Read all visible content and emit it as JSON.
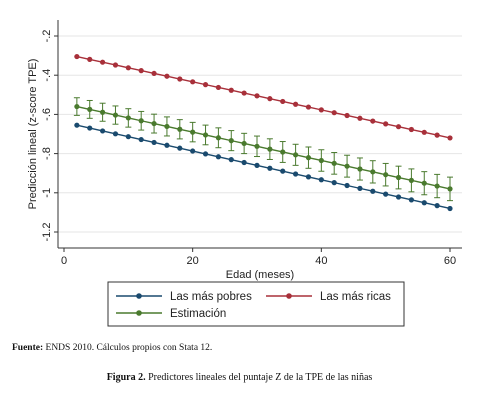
{
  "chart_data": {
    "type": "line",
    "title": "",
    "xlabel": "Edad (meses)",
    "ylabel": "Predicción lineal (z-score TPE)",
    "xlim": [
      0,
      60
    ],
    "ylim": [
      -1.2,
      -0.2
    ],
    "xticks": [
      "0",
      "20",
      "40",
      "60"
    ],
    "xtick_values": [
      0,
      20,
      40,
      60
    ],
    "yticks": [
      "-.2",
      "-.4",
      "-.6",
      "-.8",
      "-1",
      "-1.2"
    ],
    "ytick_values": [
      -0.2,
      -0.4,
      -0.6,
      -0.8,
      -1.0,
      -1.2
    ],
    "grid": true,
    "legend_placement": "bottom",
    "x": [
      2,
      4,
      6,
      8,
      10,
      12,
      14,
      16,
      18,
      20,
      22,
      24,
      26,
      28,
      30,
      32,
      34,
      36,
      38,
      40,
      42,
      44,
      46,
      48,
      50,
      52,
      54,
      56,
      58,
      60
    ],
    "series": [
      {
        "name": "Las más pobres",
        "color": "#1a4a6e",
        "y_start": -0.655,
        "y_end": -1.08,
        "error_bars": false
      },
      {
        "name": "Las más ricas",
        "color": "#a8303a",
        "y_start": -0.305,
        "y_end": -0.72,
        "error_bars": false
      },
      {
        "name": "Estimación",
        "color": "#4a7a2e",
        "y_start": -0.56,
        "y_end": -0.98,
        "error_bars": true,
        "ci_start": 0.045,
        "ci_end": 0.06
      }
    ]
  },
  "source": {
    "label": "Fuente:",
    "text": " ENDS 2010. Cálculos propios con Stata 12."
  },
  "caption": {
    "label": "Figura 2.",
    "text": " Predictores lineales del puntaje Z de la TPE de las niñas"
  }
}
